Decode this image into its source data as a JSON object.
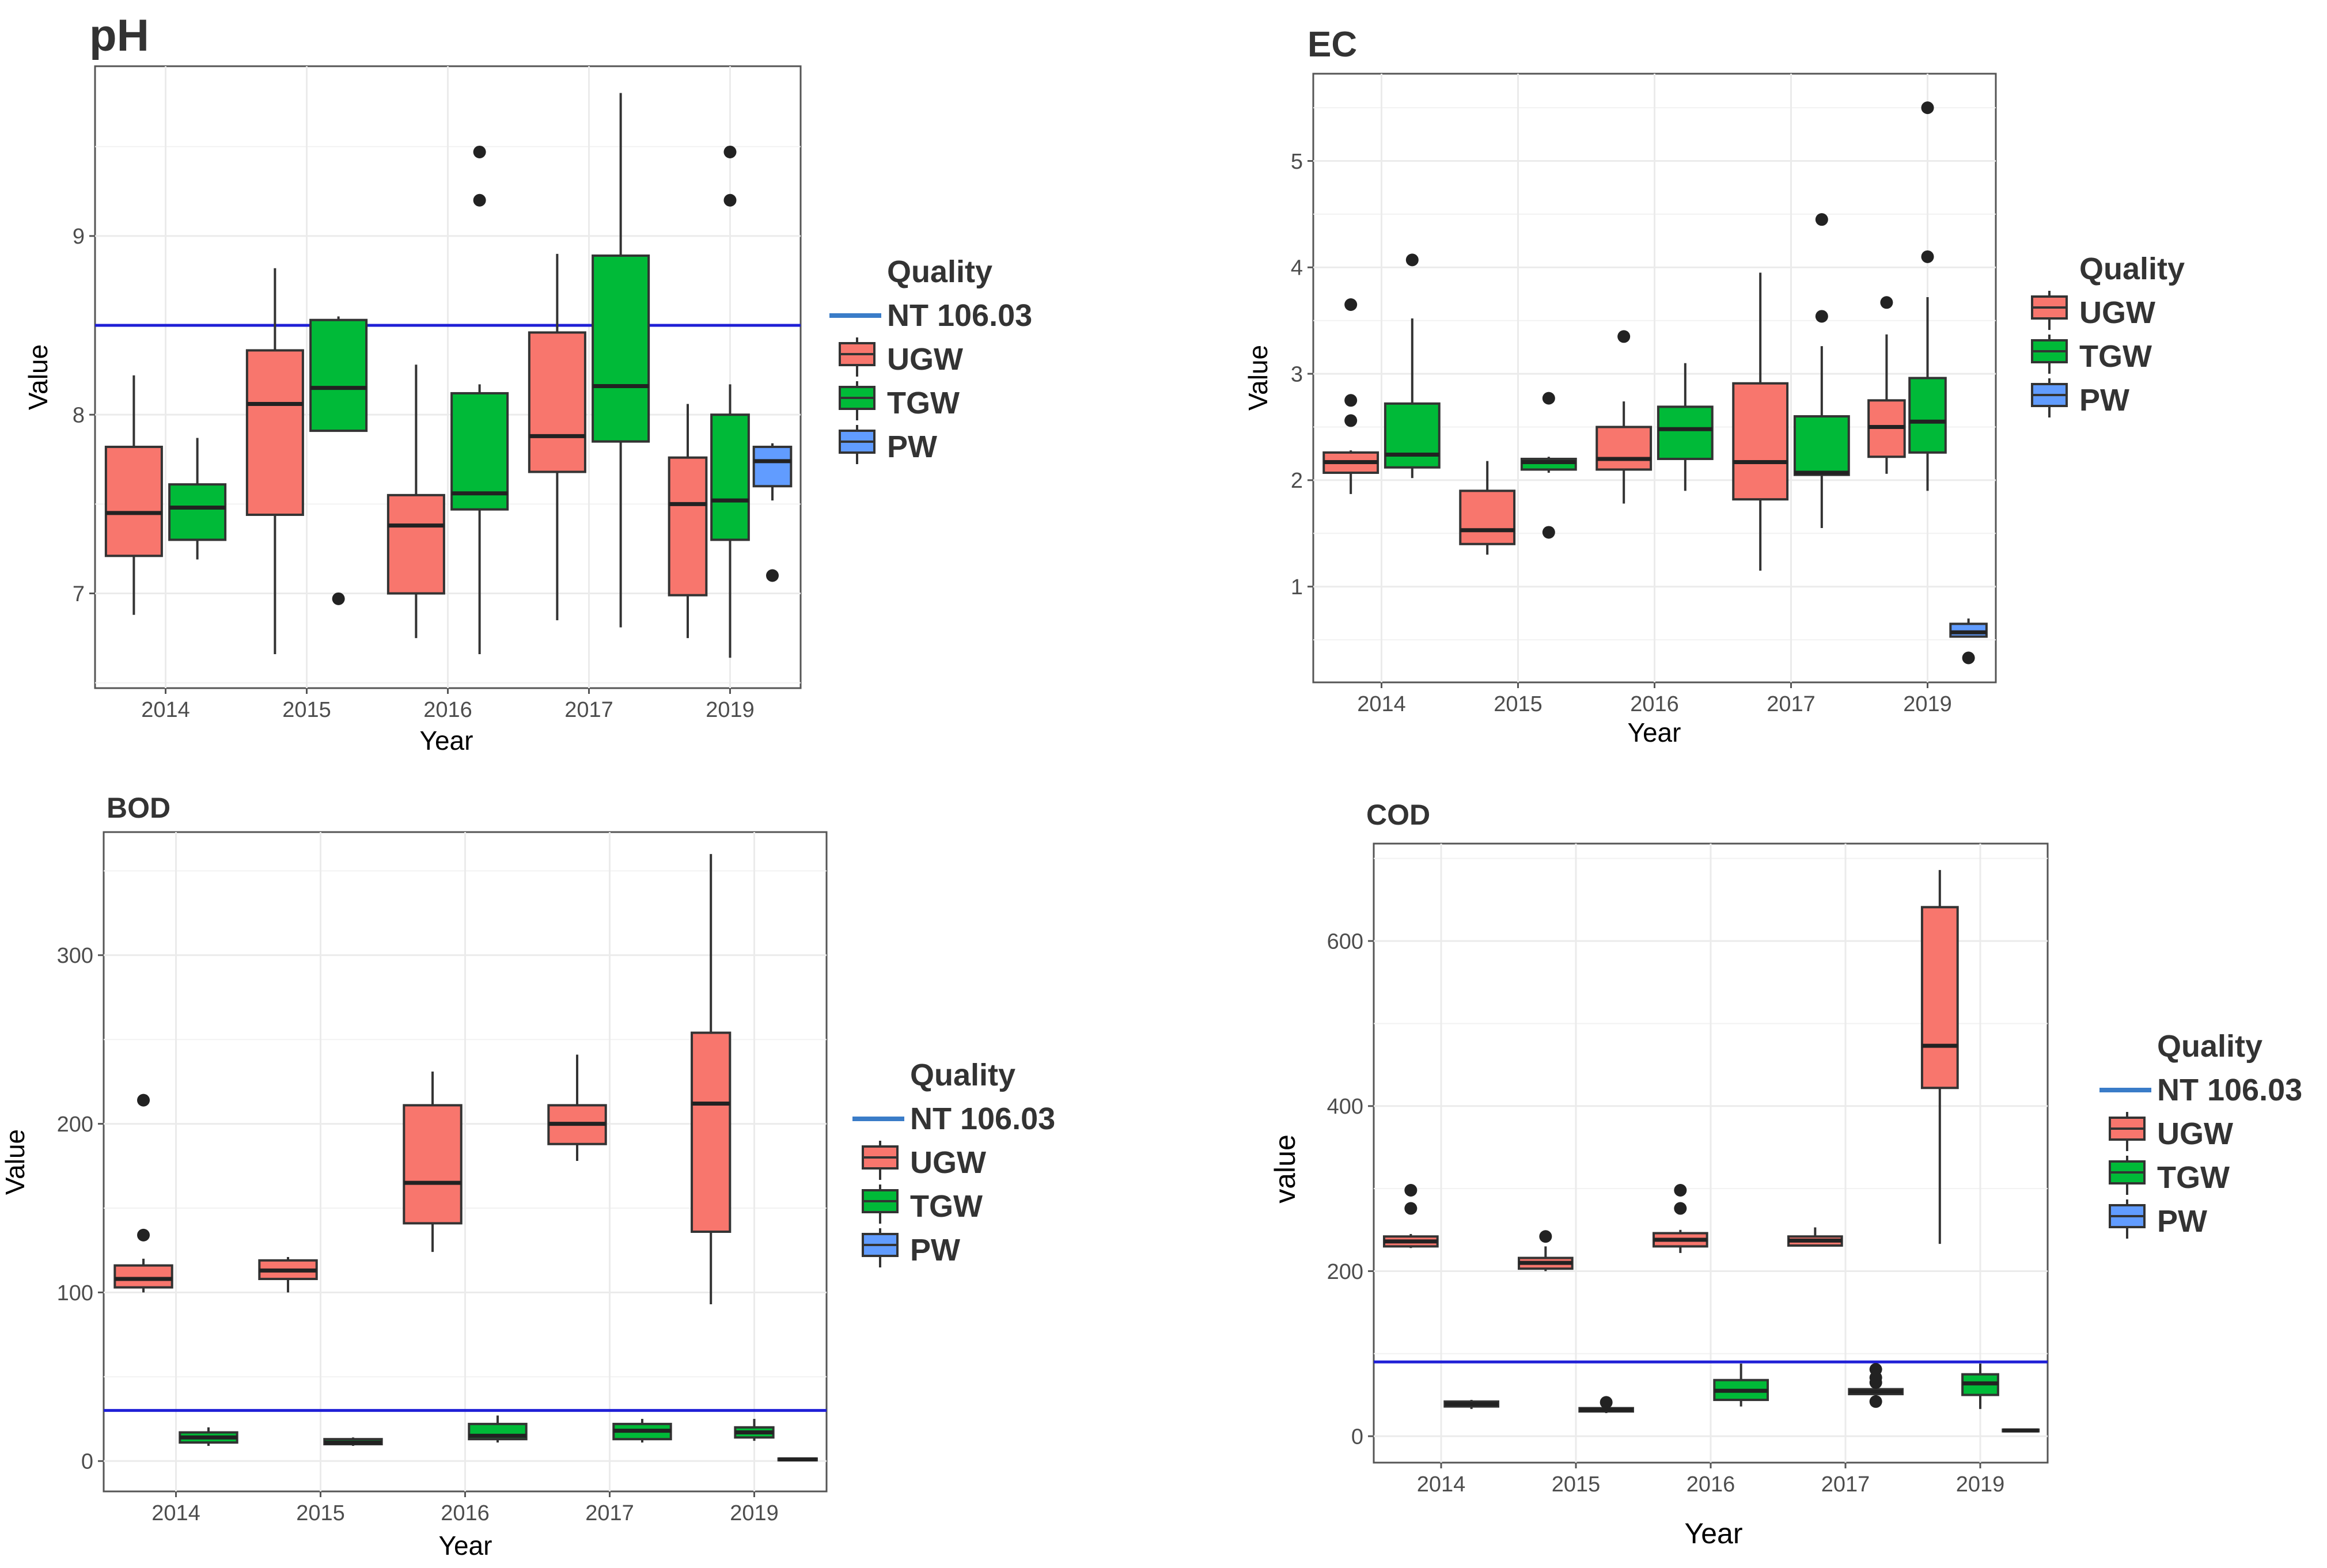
{
  "colors": {
    "UGW": "#f8766d",
    "TGW": "#00ba38",
    "PW": "#619cff",
    "reference_line": "#1f1fd6",
    "legend_line": "#3a7cc8",
    "panel_bg": "#ffffff",
    "grid": "#ebebeb",
    "box_edge": "#333333"
  },
  "chart_data": [
    {
      "type": "box",
      "title": "pH",
      "xlabel": "Year",
      "ylabel": "Value",
      "categories": [
        "2014",
        "2015",
        "2016",
        "2017",
        "2019"
      ],
      "ylim": [
        6.47,
        9.95
      ],
      "yticks": [
        7,
        8,
        9
      ],
      "tick_labels": [
        "7",
        "8",
        "9"
      ],
      "reference_line": 8.5,
      "legend": {
        "title": "Quality",
        "line_label": "NT 106.03",
        "series_labels": [
          "UGW",
          "TGW",
          "PW"
        ]
      },
      "series": [
        {
          "name": "UGW",
          "boxes": [
            {
              "category": "2014",
              "min": 6.88,
              "q1": 7.21,
              "median": 7.45,
              "q3": 7.82,
              "max": 8.22,
              "outliers": []
            },
            {
              "category": "2015",
              "min": 6.66,
              "q1": 7.44,
              "median": 8.06,
              "q3": 8.36,
              "max": 8.82,
              "outliers": []
            },
            {
              "category": "2016",
              "min": 6.75,
              "q1": 7.0,
              "median": 7.38,
              "q3": 7.55,
              "max": 8.28,
              "outliers": []
            },
            {
              "category": "2017",
              "min": 6.85,
              "q1": 7.68,
              "median": 7.88,
              "q3": 8.46,
              "max": 8.9,
              "outliers": []
            },
            {
              "category": "2019",
              "min": 6.75,
              "q1": 6.99,
              "median": 7.5,
              "q3": 7.76,
              "max": 8.06,
              "outliers": []
            }
          ]
        },
        {
          "name": "TGW",
          "boxes": [
            {
              "category": "2014",
              "min": 7.19,
              "q1": 7.3,
              "median": 7.48,
              "q3": 7.61,
              "max": 7.87,
              "outliers": []
            },
            {
              "category": "2015",
              "min": 7.91,
              "q1": 7.91,
              "median": 8.15,
              "q3": 8.53,
              "max": 8.55,
              "outliers": [
                6.97
              ]
            },
            {
              "category": "2016",
              "min": 6.66,
              "q1": 7.47,
              "median": 7.56,
              "q3": 8.12,
              "max": 8.17,
              "outliers": [
                9.2,
                9.47
              ]
            },
            {
              "category": "2017",
              "min": 6.81,
              "q1": 7.85,
              "median": 8.16,
              "q3": 8.89,
              "max": 9.8,
              "outliers": []
            },
            {
              "category": "2019",
              "min": 6.64,
              "q1": 7.3,
              "median": 7.52,
              "q3": 8.0,
              "max": 8.17,
              "outliers": [
                9.2,
                9.47
              ]
            }
          ]
        },
        {
          "name": "PW",
          "boxes": [
            {
              "category": "2019",
              "min": 7.52,
              "q1": 7.6,
              "median": 7.74,
              "q3": 7.82,
              "max": 7.84,
              "outliers": [
                7.1
              ]
            }
          ]
        }
      ]
    },
    {
      "type": "box",
      "title": "EC",
      "xlabel": "Year",
      "ylabel": "Value",
      "categories": [
        "2014",
        "2015",
        "2016",
        "2017",
        "2019"
      ],
      "ylim": [
        0.1,
        5.82
      ],
      "yticks": [
        1,
        2,
        3,
        4,
        5
      ],
      "tick_labels": [
        "1",
        "2",
        "3",
        "4",
        "5"
      ],
      "legend": {
        "title": "Quality",
        "series_labels": [
          "UGW",
          "TGW",
          "PW"
        ]
      },
      "series": [
        {
          "name": "UGW",
          "boxes": [
            {
              "category": "2014",
              "min": 1.87,
              "q1": 2.07,
              "median": 2.17,
              "q3": 2.26,
              "max": 2.28,
              "outliers": [
                2.56,
                2.75,
                3.65
              ]
            },
            {
              "category": "2015",
              "min": 1.3,
              "q1": 1.4,
              "median": 1.53,
              "q3": 1.9,
              "max": 2.18,
              "outliers": []
            },
            {
              "category": "2016",
              "min": 1.78,
              "q1": 2.1,
              "median": 2.2,
              "q3": 2.5,
              "max": 2.74,
              "outliers": [
                3.35
              ]
            },
            {
              "category": "2017",
              "min": 1.15,
              "q1": 1.82,
              "median": 2.17,
              "q3": 2.91,
              "max": 3.95,
              "outliers": []
            },
            {
              "category": "2019",
              "min": 2.06,
              "q1": 2.22,
              "median": 2.5,
              "q3": 2.75,
              "max": 3.37,
              "outliers": [
                3.67
              ]
            }
          ]
        },
        {
          "name": "TGW",
          "boxes": [
            {
              "category": "2014",
              "min": 2.02,
              "q1": 2.12,
              "median": 2.24,
              "q3": 2.72,
              "max": 3.52,
              "outliers": [
                4.07
              ]
            },
            {
              "category": "2015",
              "min": 2.07,
              "q1": 2.1,
              "median": 2.17,
              "q3": 2.2,
              "max": 2.22,
              "outliers": [
                1.51,
                2.77
              ]
            },
            {
              "category": "2016",
              "min": 1.9,
              "q1": 2.2,
              "median": 2.48,
              "q3": 2.69,
              "max": 3.1,
              "outliers": []
            },
            {
              "category": "2017",
              "min": 1.55,
              "q1": 2.05,
              "median": 2.07,
              "q3": 2.6,
              "max": 3.26,
              "outliers": [
                3.54,
                4.45
              ]
            },
            {
              "category": "2019",
              "min": 1.9,
              "q1": 2.26,
              "median": 2.55,
              "q3": 2.96,
              "max": 3.72,
              "outliers": [
                4.1,
                5.5
              ]
            }
          ]
        },
        {
          "name": "PW",
          "boxes": [
            {
              "category": "2019",
              "min": 0.52,
              "q1": 0.53,
              "median": 0.57,
              "q3": 0.65,
              "max": 0.7,
              "outliers": [
                0.33
              ]
            }
          ]
        }
      ]
    },
    {
      "type": "box",
      "title": "BOD",
      "xlabel": "Year",
      "ylabel": "Value",
      "categories": [
        "2014",
        "2015",
        "2016",
        "2017",
        "2019"
      ],
      "ylim": [
        -18,
        373
      ],
      "yticks": [
        0,
        100,
        200,
        300
      ],
      "tick_labels": [
        "0",
        "100",
        "200",
        "300"
      ],
      "reference_line": 30,
      "legend": {
        "title": "Quality",
        "line_label": "NT 106.03",
        "series_labels": [
          "UGW",
          "TGW",
          "PW"
        ]
      },
      "series": [
        {
          "name": "UGW",
          "boxes": [
            {
              "category": "2014",
              "min": 100,
              "q1": 103,
              "median": 108,
              "q3": 116,
              "max": 120,
              "outliers": [
                134,
                214
              ]
            },
            {
              "category": "2015",
              "min": 100,
              "q1": 108,
              "median": 113,
              "q3": 119,
              "max": 121,
              "outliers": []
            },
            {
              "category": "2016",
              "min": 124,
              "q1": 141,
              "median": 165,
              "q3": 211,
              "max": 231,
              "outliers": []
            },
            {
              "category": "2017",
              "min": 178,
              "q1": 188,
              "median": 200,
              "q3": 211,
              "max": 241,
              "outliers": []
            },
            {
              "category": "2019",
              "min": 93,
              "q1": 136,
              "median": 212,
              "q3": 254,
              "max": 360,
              "outliers": []
            }
          ]
        },
        {
          "name": "TGW",
          "boxes": [
            {
              "category": "2014",
              "min": 9,
              "q1": 11,
              "median": 14,
              "q3": 17,
              "max": 20,
              "outliers": []
            },
            {
              "category": "2015",
              "min": 9,
              "q1": 10,
              "median": 11,
              "q3": 13,
              "max": 14,
              "outliers": []
            },
            {
              "category": "2016",
              "min": 11,
              "q1": 13,
              "median": 15,
              "q3": 22,
              "max": 27,
              "outliers": []
            },
            {
              "category": "2017",
              "min": 11,
              "q1": 13,
              "median": 18,
              "q3": 22,
              "max": 25,
              "outliers": []
            },
            {
              "category": "2019",
              "min": 12,
              "q1": 14,
              "median": 17,
              "q3": 20,
              "max": 25,
              "outliers": []
            }
          ]
        },
        {
          "name": "PW",
          "boxes": [
            {
              "category": "2019",
              "min": 0,
              "q1": 0.5,
              "median": 1,
              "q3": 1.5,
              "max": 2,
              "outliers": []
            }
          ]
        }
      ]
    },
    {
      "type": "box",
      "title": "COD",
      "xlabel": "Year",
      "ylabel": "value",
      "categories": [
        "2014",
        "2015",
        "2016",
        "2017",
        "2019"
      ],
      "ylim": [
        -32,
        718
      ],
      "yticks": [
        0,
        200,
        400,
        600
      ],
      "tick_labels": [
        "0",
        "200",
        "400",
        "600"
      ],
      "reference_line": 90,
      "legend": {
        "title": "Quality",
        "line_label": "NT 106.03",
        "series_labels": [
          "UGW",
          "TGW",
          "PW"
        ]
      },
      "series": [
        {
          "name": "UGW",
          "boxes": [
            {
              "category": "2014",
              "min": 228,
              "q1": 230,
              "median": 236,
              "q3": 242,
              "max": 245,
              "outliers": [
                276,
                298
              ]
            },
            {
              "category": "2015",
              "min": 200,
              "q1": 203,
              "median": 210,
              "q3": 216,
              "max": 230,
              "outliers": [
                242
              ]
            },
            {
              "category": "2016",
              "min": 222,
              "q1": 230,
              "median": 238,
              "q3": 246,
              "max": 250,
              "outliers": [
                276,
                298
              ]
            },
            {
              "category": "2017",
              "min": 230,
              "q1": 231,
              "median": 237,
              "q3": 242,
              "max": 253,
              "outliers": []
            },
            {
              "category": "2019",
              "min": 233,
              "q1": 422,
              "median": 473,
              "q3": 641,
              "max": 686,
              "outliers": []
            }
          ]
        },
        {
          "name": "TGW",
          "boxes": [
            {
              "category": "2014",
              "min": 33,
              "q1": 36,
              "median": 39,
              "q3": 42,
              "max": 44,
              "outliers": []
            },
            {
              "category": "2015",
              "min": 28,
              "q1": 30,
              "median": 32,
              "q3": 34,
              "max": 36,
              "outliers": [
                41
              ]
            },
            {
              "category": "2016",
              "min": 36,
              "q1": 44,
              "median": 55,
              "q3": 68,
              "max": 88,
              "outliers": []
            },
            {
              "category": "2017",
              "min": 49,
              "q1": 51,
              "median": 54,
              "q3": 57,
              "max": 62,
              "outliers": [
                42,
                65,
                71,
                81
              ]
            },
            {
              "category": "2019",
              "min": 33,
              "q1": 50,
              "median": 64,
              "q3": 75,
              "max": 88,
              "outliers": []
            }
          ]
        },
        {
          "name": "PW",
          "boxes": [
            {
              "category": "2019",
              "min": 5,
              "q1": 6,
              "median": 7,
              "q3": 8,
              "max": 9,
              "outliers": []
            }
          ]
        }
      ]
    }
  ]
}
